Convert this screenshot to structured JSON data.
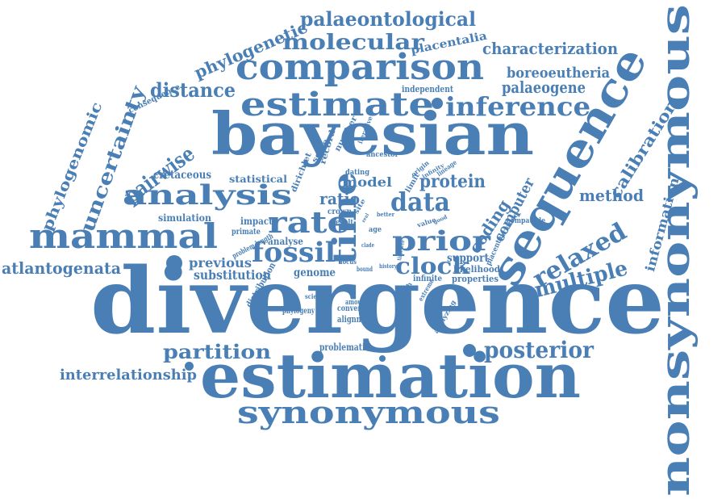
{
  "style": {
    "word_color": "#4a7fb5",
    "background": "#ffffff"
  },
  "words": [
    "divergence",
    "estimation",
    "bayesian",
    "nonsynonymous",
    "sequence",
    "comparison",
    "estimate",
    "synonymous",
    "mammal",
    "time",
    "analysis",
    "inference",
    "fossil",
    "prior",
    "rate",
    "data",
    "palaeontological",
    "molecular",
    "phylogenetic",
    "uncertainty",
    "pairwise",
    "distance",
    "relaxed",
    "posterior",
    "partition",
    "interrelationship",
    "atlantogenata",
    "characterization",
    "boreoeutheria",
    "palaeogene",
    "placentalia",
    "phylogenomic",
    "calibration",
    "method",
    "information",
    "multiple",
    "clock",
    "protein",
    "coding",
    "computer",
    "model",
    "ratio",
    "cretaceous",
    "statistical",
    "simulation",
    "previous",
    "substitution",
    "genome",
    "consequence",
    "independent",
    "dirichlet",
    "impact",
    "primate",
    "analyse",
    "problem length",
    "distribution",
    "phylogeny",
    "alignment",
    "converge",
    "amount",
    "science",
    "problematic",
    "support",
    "likelihood",
    "properties",
    "infinite",
    "placental",
    "variance",
    "compatible",
    "dating",
    "record",
    "number",
    "scale",
    "iterative",
    "ancestor",
    "origin",
    "lineage",
    "infinity",
    "crown",
    "limit",
    "site",
    "age",
    "better",
    "result",
    "value",
    "good",
    "many",
    "real",
    "locus",
    "bound",
    "clade",
    "timetree",
    "history",
    "branch",
    "extreme",
    "analyzing"
  ]
}
